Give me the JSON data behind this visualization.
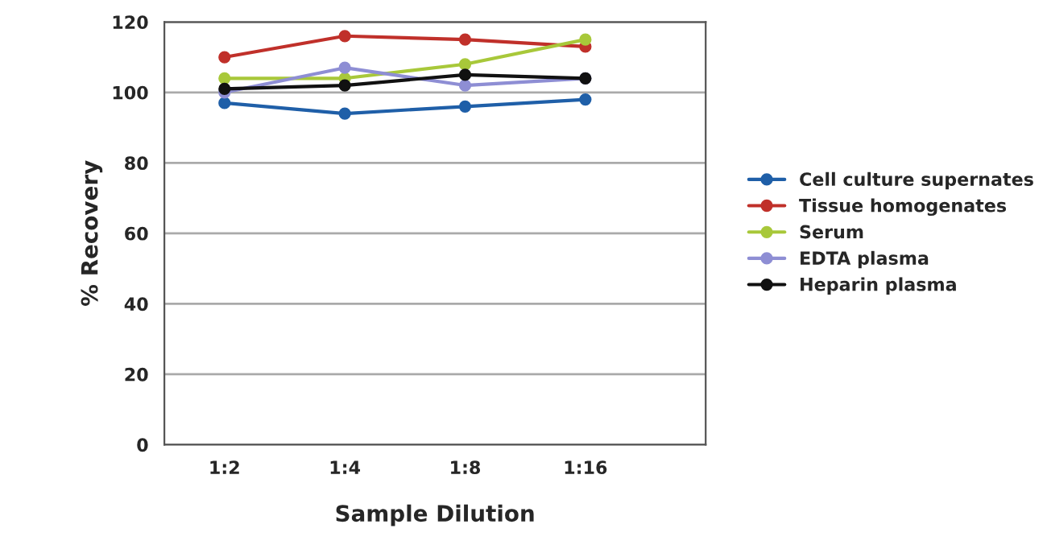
{
  "chart_data": {
    "type": "line",
    "xlabel": "Sample Dilution",
    "ylabel": "% Recovery",
    "categories": [
      "1:2",
      "1:4",
      "1:8",
      "1:16"
    ],
    "series": [
      {
        "name": "Cell culture supernates",
        "color": "#1f5fa8",
        "values": [
          97,
          94,
          96,
          98
        ]
      },
      {
        "name": "Tissue homogenates",
        "color": "#c0302a",
        "values": [
          110,
          116,
          115,
          113
        ]
      },
      {
        "name": "Serum",
        "color": "#a8c83a",
        "values": [
          104,
          104,
          108,
          115
        ]
      },
      {
        "name": "EDTA plasma",
        "color": "#8e8ed4",
        "values": [
          100,
          107,
          102,
          104
        ]
      },
      {
        "name": "Heparin plasma",
        "color": "#111111",
        "values": [
          101,
          102,
          105,
          104
        ]
      }
    ],
    "ylim": [
      0,
      120
    ],
    "yticks": [
      0,
      20,
      40,
      60,
      80,
      100,
      120
    ],
    "grid": "y",
    "legend": "right",
    "marker": "circle",
    "line_style": "solid"
  }
}
